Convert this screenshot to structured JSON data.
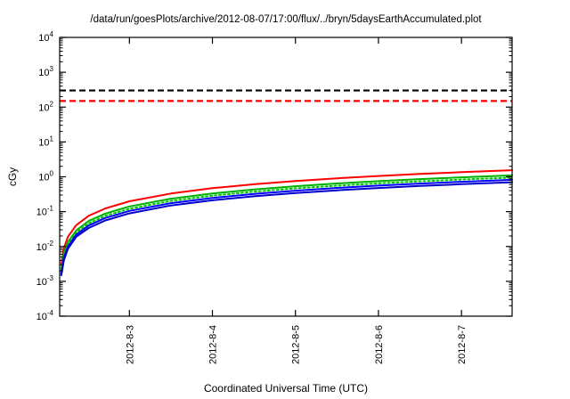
{
  "page": {
    "background": "#ffffff"
  },
  "chart_data": {
    "type": "line",
    "title": "/data/run/goesPlots/archive/2012-08-07/17:00/flux/../bryn/5daysEarthAccumulated.plot",
    "xlabel": "Coordinated Universal Time (UTC)",
    "ylabel": "cGy",
    "y_scale": "log10",
    "ylim_exponents": [
      -4,
      4
    ],
    "grid": false,
    "legend": "none",
    "x_domain_days": [
      0,
      5.45
    ],
    "x_ticks": [
      {
        "t": 0.84,
        "label": "2012-8-3"
      },
      {
        "t": 1.84,
        "label": "2012-8-4"
      },
      {
        "t": 2.84,
        "label": "2012-8-5"
      },
      {
        "t": 3.84,
        "label": "2012-8-6"
      },
      {
        "t": 4.84,
        "label": "2012-8-7"
      }
    ],
    "thresholds": [
      {
        "name": "upper-limit-black-dashed",
        "value": 300,
        "color": "#000000"
      },
      {
        "name": "lower-limit-red-dashed",
        "value": 150,
        "color": "#ff0000"
      }
    ],
    "x_days": [
      0.02,
      0.05,
      0.1,
      0.2,
      0.35,
      0.55,
      0.84,
      1.34,
      1.84,
      2.34,
      2.84,
      3.34,
      3.84,
      4.34,
      4.84,
      5.45
    ],
    "series": [
      {
        "name": "accumulated-dose-red",
        "color": "#ff0000",
        "style": "solid",
        "values": [
          0.0032,
          0.0089,
          0.019,
          0.041,
          0.076,
          0.124,
          0.198,
          0.331,
          0.47,
          0.611,
          0.757,
          0.904,
          1.054,
          1.206,
          1.36,
          1.55
        ]
      },
      {
        "name": "accumulated-dose-green",
        "color": "#00b000",
        "style": "solid",
        "values": [
          0.0023,
          0.0063,
          0.0135,
          0.029,
          0.054,
          0.088,
          0.141,
          0.235,
          0.333,
          0.434,
          0.537,
          0.642,
          0.748,
          0.856,
          0.965,
          1.1
        ]
      },
      {
        "name": "accumulated-dose-green-dotted",
        "color": "#00c800",
        "style": "dotted",
        "values": [
          0.002,
          0.0055,
          0.0117,
          0.025,
          0.046,
          0.076,
          0.121,
          0.203,
          0.288,
          0.375,
          0.464,
          0.554,
          0.646,
          0.739,
          0.834,
          0.95
        ]
      },
      {
        "name": "accumulated-dose-blue-upper",
        "color": "#0000ff",
        "style": "solid",
        "values": [
          0.0017,
          0.0047,
          0.0101,
          0.022,
          0.04,
          0.066,
          0.105,
          0.175,
          0.248,
          0.323,
          0.4,
          0.478,
          0.558,
          0.638,
          0.72,
          0.82
        ]
      },
      {
        "name": "accumulated-dose-blue-lower",
        "color": "#0000cc",
        "style": "solid",
        "values": [
          0.0015,
          0.004,
          0.0086,
          0.019,
          0.034,
          0.056,
          0.089,
          0.15,
          0.212,
          0.276,
          0.342,
          0.408,
          0.476,
          0.545,
          0.614,
          0.7
        ]
      }
    ]
  }
}
